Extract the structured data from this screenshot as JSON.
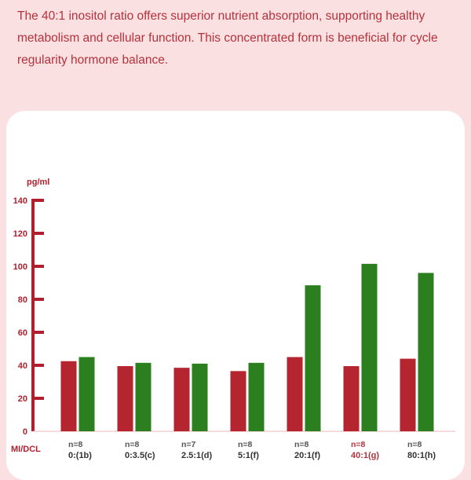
{
  "intro_text": "The 40:1 inositol ratio offers superior nutrient absorption, supporting healthy metabolism and cellular function. This concentrated form is beneficial for cycle regularity hormone balance.",
  "colors": {
    "background": "#fbe0e2",
    "card": "#ffffff",
    "text": "#b3323c",
    "axis": "#b11f2c",
    "series_red": "#b5252f",
    "series_green": "#2c7f1e"
  },
  "chart_data": {
    "type": "bar",
    "title": "",
    "ylabel": "pg/ml",
    "xlabel": "MI/DCL",
    "ylim": [
      0,
      140
    ],
    "yticks": [
      0,
      20,
      40,
      60,
      80,
      100,
      120,
      140
    ],
    "grid": false,
    "categories": [
      {
        "n": "n=8",
        "ratio": "0:(1b)",
        "highlight": false
      },
      {
        "n": "n=8",
        "ratio": "0:3.5(c)",
        "highlight": false
      },
      {
        "n": "n=7",
        "ratio": "2.5:1(d)",
        "highlight": false
      },
      {
        "n": "n=8",
        "ratio": "5:1(f)",
        "highlight": false
      },
      {
        "n": "n=8",
        "ratio": "20:1(f)",
        "highlight": false
      },
      {
        "n": "n=8",
        "ratio": "40:1(g)",
        "highlight": true
      },
      {
        "n": "n=8",
        "ratio": "80:1(h)",
        "highlight": false
      }
    ],
    "series": [
      {
        "color": "#b5252f",
        "values": [
          42.5,
          39.5,
          38.5,
          36.5,
          45,
          39.5,
          44
        ]
      },
      {
        "color": "#2c7f1e",
        "values": [
          45,
          41.5,
          41,
          41.5,
          88.5,
          101.5,
          96
        ]
      }
    ]
  }
}
